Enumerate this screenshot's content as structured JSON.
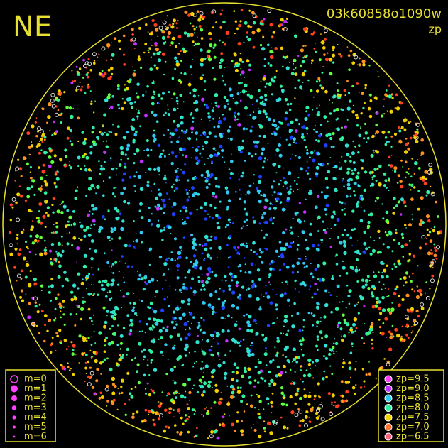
{
  "title": "NE",
  "image_id": "03k60858o1090w",
  "quantity": "zp",
  "magnitude_legend": [
    "m=0",
    "m=1",
    "m=2",
    "m=3",
    "m=4",
    "m=5",
    "m=6"
  ],
  "zp_legend": [
    {
      "label": "zp=9.5",
      "color": "#ff40ff"
    },
    {
      "label": "zp=9.0",
      "color": "#c030ff"
    },
    {
      "label": "zp=8.5",
      "color": "#30c8f0"
    },
    {
      "label": "zp=8.0",
      "color": "#30f0a0"
    },
    {
      "label": "zp=7.5",
      "color": "#f0d000"
    },
    {
      "label": "zp=7.0",
      "color": "#ff7030"
    },
    {
      "label": "zp=6.5",
      "color": "#ff6080"
    }
  ]
}
